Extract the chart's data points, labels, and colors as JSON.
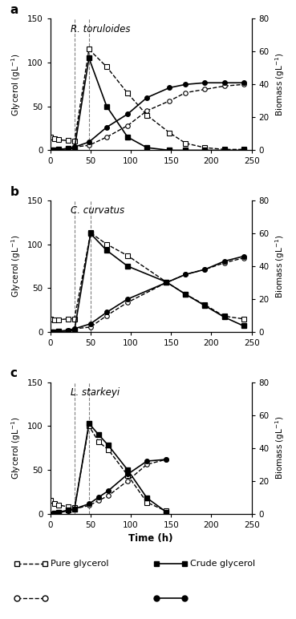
{
  "panel_a": {
    "title": "R. toruloides",
    "dashed_lines": [
      30,
      48
    ],
    "pure_glycerol_gly": {
      "x": [
        0,
        5,
        10,
        22,
        30,
        48,
        70,
        96,
        120,
        148,
        168,
        192,
        216,
        240
      ],
      "y": [
        15,
        13,
        12,
        11,
        10,
        115,
        95,
        65,
        40,
        20,
        8,
        3,
        1,
        1
      ]
    },
    "crude_glycerol_gly": {
      "x": [
        0,
        5,
        10,
        22,
        30,
        48,
        70,
        96,
        120,
        148,
        168,
        192,
        216,
        240
      ],
      "y": [
        0,
        0,
        1,
        2,
        2,
        105,
        50,
        15,
        3,
        0,
        0,
        0,
        0,
        0
      ]
    },
    "pure_glycerol_bio": {
      "x": [
        0,
        5,
        10,
        22,
        30,
        48,
        70,
        96,
        120,
        148,
        168,
        192,
        216,
        240
      ],
      "y": [
        0,
        0,
        0.5,
        1,
        2,
        3,
        8,
        15,
        24,
        30,
        35,
        37,
        39,
        40
      ]
    },
    "crude_glycerol_bio": {
      "x": [
        0,
        5,
        10,
        22,
        30,
        48,
        70,
        96,
        120,
        148,
        168,
        192,
        216,
        240
      ],
      "y": [
        0,
        0,
        0.5,
        1,
        2,
        5,
        14,
        22,
        32,
        38,
        40,
        41,
        41,
        41
      ]
    }
  },
  "panel_b": {
    "title": "C. curvatus",
    "dashed_lines": [
      30,
      50
    ],
    "pure_glycerol_gly": {
      "x": [
        0,
        5,
        10,
        22,
        30,
        50,
        70,
        96,
        144,
        168,
        192,
        216,
        240
      ],
      "y": [
        15,
        14,
        14,
        15,
        15,
        113,
        100,
        87,
        57,
        43,
        31,
        18,
        15
      ]
    },
    "crude_glycerol_gly": {
      "x": [
        0,
        5,
        10,
        22,
        30,
        50,
        70,
        96,
        144,
        168,
        192,
        216,
        240
      ],
      "y": [
        0,
        0,
        1,
        1,
        2,
        112,
        93,
        75,
        57,
        43,
        30,
        17,
        7
      ]
    },
    "pure_glycerol_bio": {
      "x": [
        0,
        5,
        10,
        22,
        30,
        50,
        70,
        96,
        144,
        168,
        192,
        216,
        240
      ],
      "y": [
        0,
        0,
        0.5,
        1,
        2,
        3,
        10,
        18,
        30,
        35,
        38,
        42,
        45
      ]
    },
    "crude_glycerol_bio": {
      "x": [
        0,
        5,
        10,
        22,
        30,
        50,
        70,
        96,
        144,
        168,
        192,
        216,
        240
      ],
      "y": [
        0,
        0,
        0.5,
        1,
        2,
        5,
        12,
        20,
        30,
        35,
        38,
        43,
        46
      ]
    }
  },
  "panel_c": {
    "title": "L. starkeyi",
    "dashed_lines": [
      30,
      48
    ],
    "pure_glycerol_gly": {
      "x": [
        0,
        5,
        10,
        22,
        30,
        48,
        60,
        72,
        96,
        120,
        144
      ],
      "y": [
        15,
        12,
        10,
        8,
        7,
        100,
        82,
        73,
        44,
        13,
        3
      ]
    },
    "crude_glycerol_gly": {
      "x": [
        0,
        5,
        10,
        22,
        30,
        48,
        60,
        72,
        96,
        120,
        144
      ],
      "y": [
        0,
        1,
        2,
        4,
        5,
        103,
        90,
        78,
        50,
        18,
        2
      ]
    },
    "pure_glycerol_bio": {
      "x": [
        0,
        5,
        10,
        22,
        30,
        48,
        60,
        72,
        96,
        120,
        144
      ],
      "y": [
        0,
        0,
        0.5,
        2,
        3,
        5,
        8,
        11,
        20,
        30,
        33
      ]
    },
    "crude_glycerol_bio": {
      "x": [
        0,
        5,
        10,
        22,
        30,
        48,
        60,
        72,
        96,
        120,
        144
      ],
      "y": [
        0,
        0,
        0.5,
        2,
        3,
        6,
        10,
        14,
        24,
        32,
        33
      ]
    }
  },
  "xlim": [
    0,
    250
  ],
  "ylim_gly": [
    0,
    150
  ],
  "ylim_bio": [
    0,
    80
  ],
  "yticks_gly": [
    0,
    50,
    100,
    150
  ],
  "yticks_bio": [
    0,
    20,
    40,
    60,
    80
  ],
  "xticks": [
    0,
    50,
    100,
    150,
    200,
    250
  ]
}
